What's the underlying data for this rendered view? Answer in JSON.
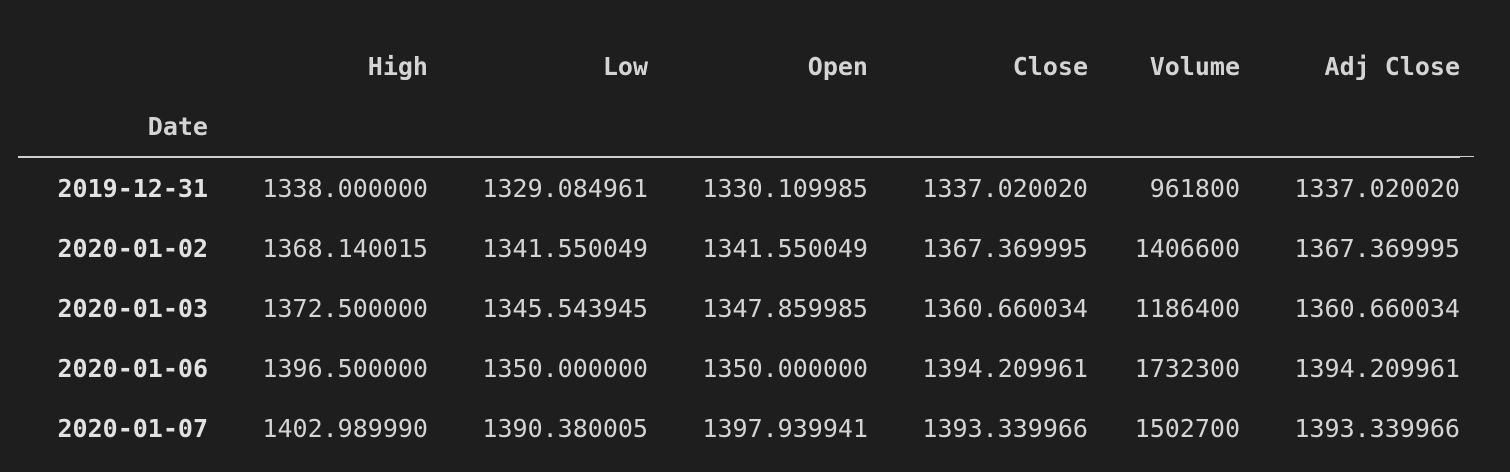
{
  "table": {
    "columns": [
      "High",
      "Low",
      "Open",
      "Close",
      "Volume",
      "Adj Close"
    ],
    "index_name": "Date",
    "rows": [
      {
        "index": "2019-12-31",
        "values": [
          "1338.000000",
          "1329.084961",
          "1330.109985",
          "1337.020020",
          "961800",
          "1337.020020"
        ]
      },
      {
        "index": "2020-01-02",
        "values": [
          "1368.140015",
          "1341.550049",
          "1341.550049",
          "1367.369995",
          "1406600",
          "1367.369995"
        ]
      },
      {
        "index": "2020-01-03",
        "values": [
          "1372.500000",
          "1345.543945",
          "1347.859985",
          "1360.660034",
          "1186400",
          "1360.660034"
        ]
      },
      {
        "index": "2020-01-06",
        "values": [
          "1396.500000",
          "1350.000000",
          "1350.000000",
          "1394.209961",
          "1732300",
          "1394.209961"
        ]
      },
      {
        "index": "2020-01-07",
        "values": [
          "1402.989990",
          "1390.380005",
          "1397.939941",
          "1393.339966",
          "1502700",
          "1393.339966"
        ]
      }
    ]
  }
}
